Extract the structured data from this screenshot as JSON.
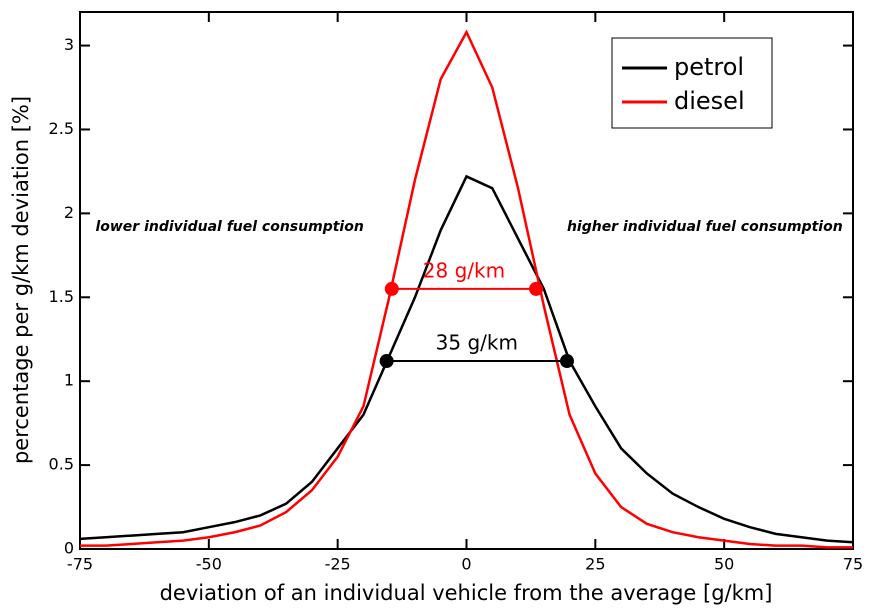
{
  "chart_data": {
    "type": "line",
    "x_label": "deviation of an individual vehicle from the average [g/km]",
    "y_label": "percentage per g/km deviation [%]",
    "x": [
      -75,
      -70,
      -65,
      -60,
      -55,
      -50,
      -45,
      -40,
      -35,
      -30,
      -25,
      -20,
      -15,
      -10,
      -5,
      0,
      5,
      10,
      15,
      20,
      25,
      30,
      35,
      40,
      45,
      50,
      55,
      60,
      65,
      70,
      75
    ],
    "series": [
      {
        "name": "petrol",
        "color": "#000000",
        "values": [
          0.06,
          0.07,
          0.08,
          0.09,
          0.1,
          0.13,
          0.16,
          0.2,
          0.27,
          0.4,
          0.6,
          0.8,
          1.15,
          1.5,
          1.9,
          2.22,
          2.15,
          1.85,
          1.55,
          1.12,
          0.85,
          0.6,
          0.45,
          0.33,
          0.25,
          0.18,
          0.13,
          0.09,
          0.07,
          0.05,
          0.04
        ]
      },
      {
        "name": "diesel",
        "color": "#ff0000",
        "values": [
          0.02,
          0.02,
          0.03,
          0.04,
          0.05,
          0.07,
          0.1,
          0.14,
          0.22,
          0.35,
          0.55,
          0.85,
          1.5,
          2.2,
          2.8,
          3.08,
          2.75,
          2.15,
          1.45,
          0.8,
          0.45,
          0.25,
          0.15,
          0.1,
          0.07,
          0.05,
          0.03,
          0.02,
          0.02,
          0.01,
          0.01
        ]
      }
    ],
    "xlim": [
      -75,
      75
    ],
    "xticks": [
      -75,
      -50,
      -25,
      0,
      25,
      50,
      75
    ],
    "ylim": [
      0,
      3.2
    ],
    "yticks": [
      0,
      0.5,
      1,
      1.5,
      2,
      2.5,
      3
    ],
    "legend": "upper right",
    "grid": false,
    "annotations": [
      {
        "text": "28 g/km",
        "color": "#ff0000",
        "x": [
          -14.5,
          13.5
        ],
        "y": 1.55
      },
      {
        "text": "35 g/km",
        "color": "#000000",
        "x": [
          -15.5,
          19.5
        ],
        "y": 1.12
      }
    ],
    "notes": [
      {
        "text": "lower individual fuel consumption",
        "x": -72,
        "y": 1.92
      },
      {
        "text": "higher individual fuel consumption",
        "x": 73,
        "y": 1.92
      }
    ]
  }
}
